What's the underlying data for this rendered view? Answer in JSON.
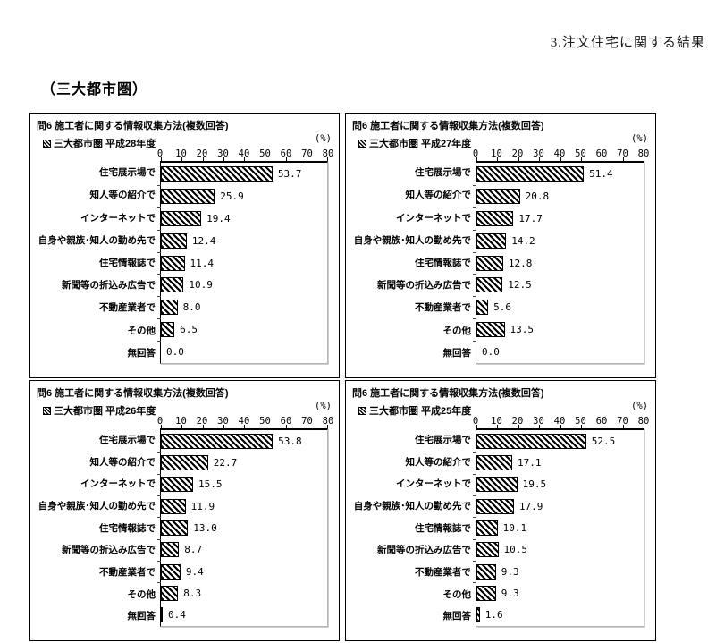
{
  "page": {
    "doc_title": "3.注文住宅に関する結果",
    "section_heading": "（三大都市圏）"
  },
  "chart_data": [
    {
      "type": "bar",
      "orientation": "horizontal",
      "title": "問6 施工者に関する情報収集方法(複数回答)",
      "legend": "三大都市圏 平成28年度",
      "unit_label": "(%)",
      "xlim": [
        0,
        80
      ],
      "xticks": [
        0,
        10,
        20,
        30,
        40,
        50,
        60,
        70,
        80
      ],
      "categories": [
        "住宅展示場で",
        "知人等の紹介で",
        "インターネットで",
        "自身や親族･知人の勤め先で",
        "住宅情報誌で",
        "新聞等の折込み広告で",
        "不動産業者で",
        "その他",
        "無回答"
      ],
      "values": [
        53.7,
        25.9,
        19.4,
        12.4,
        11.4,
        10.9,
        8.0,
        6.5,
        0.0
      ]
    },
    {
      "type": "bar",
      "orientation": "horizontal",
      "title": "問6 施工者に関する情報収集方法(複数回答)",
      "legend": "三大都市圏 平成27年度",
      "unit_label": "(%)",
      "xlim": [
        0,
        80
      ],
      "xticks": [
        0,
        10,
        20,
        30,
        40,
        50,
        60,
        70,
        80
      ],
      "categories": [
        "住宅展示場で",
        "知人等の紹介で",
        "インターネットで",
        "自身や親族･知人の勤め先で",
        "住宅情報誌で",
        "新聞等の折込み広告で",
        "不動産業者で",
        "その他",
        "無回答"
      ],
      "values": [
        51.4,
        20.8,
        17.7,
        14.2,
        12.8,
        12.5,
        5.6,
        13.5,
        0.0
      ]
    },
    {
      "type": "bar",
      "orientation": "horizontal",
      "title": "問6 施工者に関する情報収集方法(複数回答)",
      "legend": "三大都市圏 平成26年度",
      "unit_label": "(%)",
      "xlim": [
        0,
        80
      ],
      "xticks": [
        0,
        10,
        20,
        30,
        40,
        50,
        60,
        70,
        80
      ],
      "categories": [
        "住宅展示場で",
        "知人等の紹介で",
        "インターネットで",
        "自身や親族･知人の勤め先で",
        "住宅情報誌で",
        "新聞等の折込み広告で",
        "不動産業者で",
        "その他",
        "無回答"
      ],
      "values": [
        53.8,
        22.7,
        15.5,
        11.9,
        13.0,
        8.7,
        9.4,
        8.3,
        0.4
      ]
    },
    {
      "type": "bar",
      "orientation": "horizontal",
      "title": "問6 施工者に関する情報収集方法(複数回答)",
      "legend": "三大都市圏 平成25年度",
      "unit_label": "(%)",
      "xlim": [
        0,
        80
      ],
      "xticks": [
        0,
        10,
        20,
        30,
        40,
        50,
        60,
        70,
        80
      ],
      "categories": [
        "住宅展示場で",
        "知人等の紹介で",
        "インターネットで",
        "自身や親族･知人の勤め先で",
        "住宅情報誌で",
        "新聞等の折込み広告で",
        "不動産業者で",
        "その他",
        "無回答"
      ],
      "values": [
        52.5,
        17.1,
        19.5,
        17.9,
        10.1,
        10.5,
        9.3,
        9.3,
        1.6
      ]
    }
  ],
  "colors": {
    "panel_border": "#000000",
    "plot_border_gray": "#b3b3b3",
    "bar_hatch": "#000000",
    "background": "#ffffff"
  }
}
